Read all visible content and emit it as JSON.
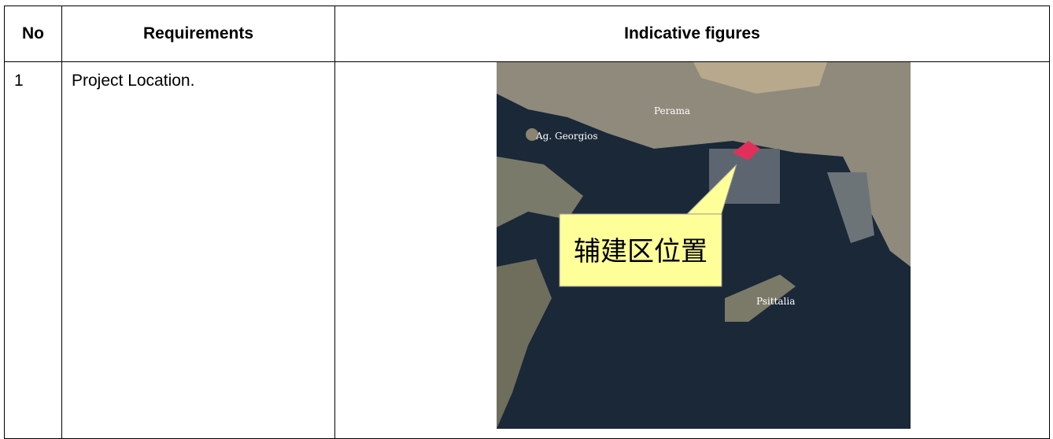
{
  "table": {
    "header": [
      "No",
      "Requirements",
      "Indicative figures"
    ],
    "rows": [
      [
        "1",
        "Project Location."
      ]
    ]
  },
  "figure": {
    "labels": {
      "north": "Perama",
      "west": "Ag. Georgios",
      "island": "Psittalia",
      "callout": "辅建区位置"
    }
  }
}
